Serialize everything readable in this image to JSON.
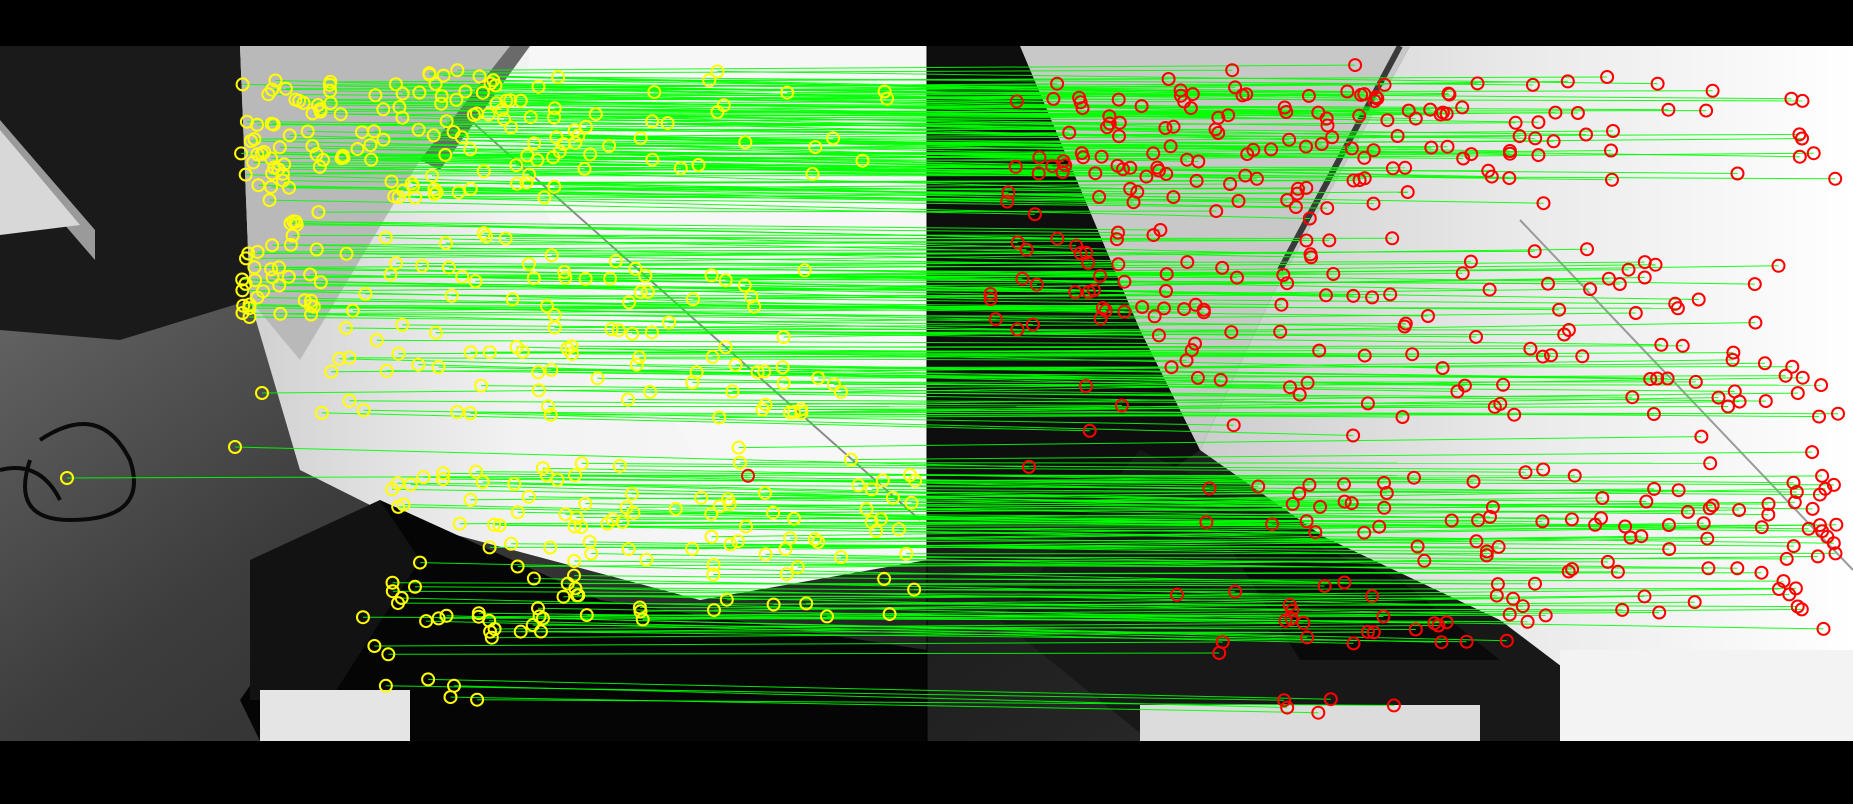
{
  "image": {
    "kind": "stereo feature-match visualization",
    "views": [
      "left",
      "right"
    ]
  },
  "colors": {
    "background": "#000000",
    "left_keypoint": "#ffff00",
    "right_keypoint": "#ff0000",
    "match_line": "#00ff00",
    "wall_light": "#f4f4f4",
    "wall_mid": "#bdbdbd",
    "floor_dark": "#2a2a2a",
    "shadow": "#050505"
  },
  "matches": {
    "approximate_count": 420,
    "random_seed": 17
  }
}
